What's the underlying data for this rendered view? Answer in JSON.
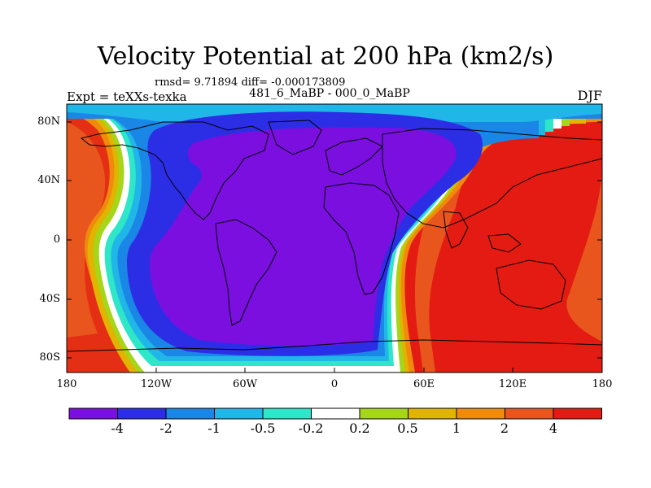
{
  "title": "Velocity Potential at 200 hPa (km2/s)",
  "stats": "rmsd= 9.71894 diff= -0.000173809",
  "experiment": "Expt = teXXs-texka",
  "comparison": "481_6_MaBP - 000_0_MaBP",
  "season": "DJF",
  "y_ticks": [
    "80N",
    "40N",
    "0",
    "40S",
    "80S"
  ],
  "x_ticks": [
    "180",
    "120W",
    "60W",
    "0",
    "60E",
    "120E",
    "180"
  ],
  "colorbar": {
    "colors": [
      "#7a0fe0",
      "#2c2ee6",
      "#1a86e6",
      "#21b6e8",
      "#2ee6c8",
      "#ffffff",
      "#a6d61a",
      "#e0b400",
      "#f08a0c",
      "#e8561e",
      "#e41b12"
    ],
    "labels": [
      "-4",
      "-2",
      "-1",
      "-0.5",
      "-0.2",
      "0.2",
      "0.5",
      "1",
      "2",
      "4"
    ]
  }
}
